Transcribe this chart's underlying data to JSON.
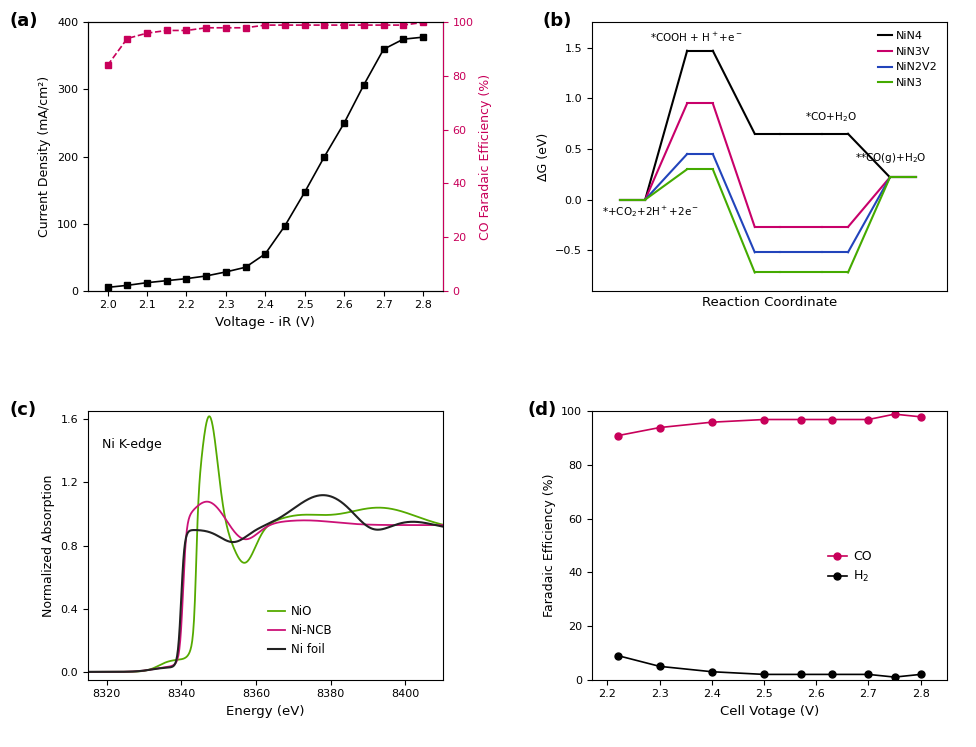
{
  "panel_a": {
    "voltage": [
      2.0,
      2.05,
      2.1,
      2.15,
      2.2,
      2.25,
      2.3,
      2.35,
      2.4,
      2.45,
      2.5,
      2.55,
      2.6,
      2.65,
      2.7,
      2.75,
      2.8
    ],
    "current": [
      5,
      8,
      12,
      15,
      18,
      22,
      28,
      35,
      55,
      97,
      147,
      200,
      250,
      307,
      360,
      375,
      378
    ],
    "faradaic": [
      84,
      94,
      96,
      97,
      97,
      98,
      98,
      98,
      99,
      99,
      99,
      99,
      99,
      99,
      99,
      99,
      100
    ],
    "xlabel": "Voltage - iR (V)",
    "ylabel_left": "Current Density (mA/cm²)",
    "ylabel_right": "CO Faradaic Efficiency (%)",
    "xlim": [
      1.95,
      2.85
    ],
    "ylim_left": [
      0,
      400
    ],
    "ylim_right": [
      0,
      100
    ],
    "yticks_left": [
      0,
      100,
      200,
      300,
      400
    ],
    "yticks_right": [
      0,
      20,
      40,
      60,
      80,
      100
    ]
  },
  "panel_b": {
    "x_coords": [
      0,
      1,
      2,
      3,
      4
    ],
    "NiN4": [
      0.0,
      1.47,
      0.65,
      0.65,
      0.22
    ],
    "NiN3V": [
      0.0,
      0.95,
      -0.27,
      -0.27,
      0.22
    ],
    "NiN2V2": [
      0.0,
      0.45,
      -0.52,
      -0.52,
      0.22
    ],
    "NiN3": [
      0.0,
      0.3,
      -0.72,
      -0.72,
      0.22
    ],
    "xlabel": "Reaction Coordinate",
    "ylabel": "ΔG (eV)",
    "ylim": [
      -0.9,
      1.75
    ]
  },
  "panel_c": {
    "xlabel": "Energy (eV)",
    "ylabel": "Normalized Absorption",
    "xlim": [
      8315,
      8410
    ],
    "ylim": [
      -0.05,
      1.65
    ],
    "yticks": [
      0.0,
      0.4,
      0.8,
      1.2,
      1.6
    ],
    "xticks": [
      8320,
      8340,
      8360,
      8380,
      8400
    ],
    "annotation": "Ni K-edge"
  },
  "panel_d": {
    "voltage_d": [
      2.22,
      2.3,
      2.4,
      2.5,
      2.57,
      2.63,
      2.7,
      2.75,
      2.8
    ],
    "CO_FE": [
      91,
      94,
      96,
      97,
      97,
      97,
      97,
      99,
      98
    ],
    "H2_FE": [
      9,
      5,
      3,
      2,
      2,
      2,
      2,
      1,
      2
    ],
    "xlabel": "Cell Votage (V)",
    "ylabel": "Faradaic Efficiency (%)",
    "xlim": [
      2.17,
      2.85
    ],
    "ylim": [
      0,
      100
    ],
    "yticks": [
      0,
      20,
      40,
      60,
      80,
      100
    ],
    "xticks": [
      2.2,
      2.3,
      2.4,
      2.5,
      2.6,
      2.7,
      2.8
    ]
  },
  "colors": {
    "black": "#000000",
    "crimson": "#c8005a",
    "NiN4": "#000000",
    "NiN3V": "#c8006a",
    "NiN2V2": "#2244bb",
    "NiN3_color": "#44aa00",
    "nio_green": "#55aa00",
    "nincb_pink": "#cc1177",
    "nifoil_dark": "#222222"
  }
}
